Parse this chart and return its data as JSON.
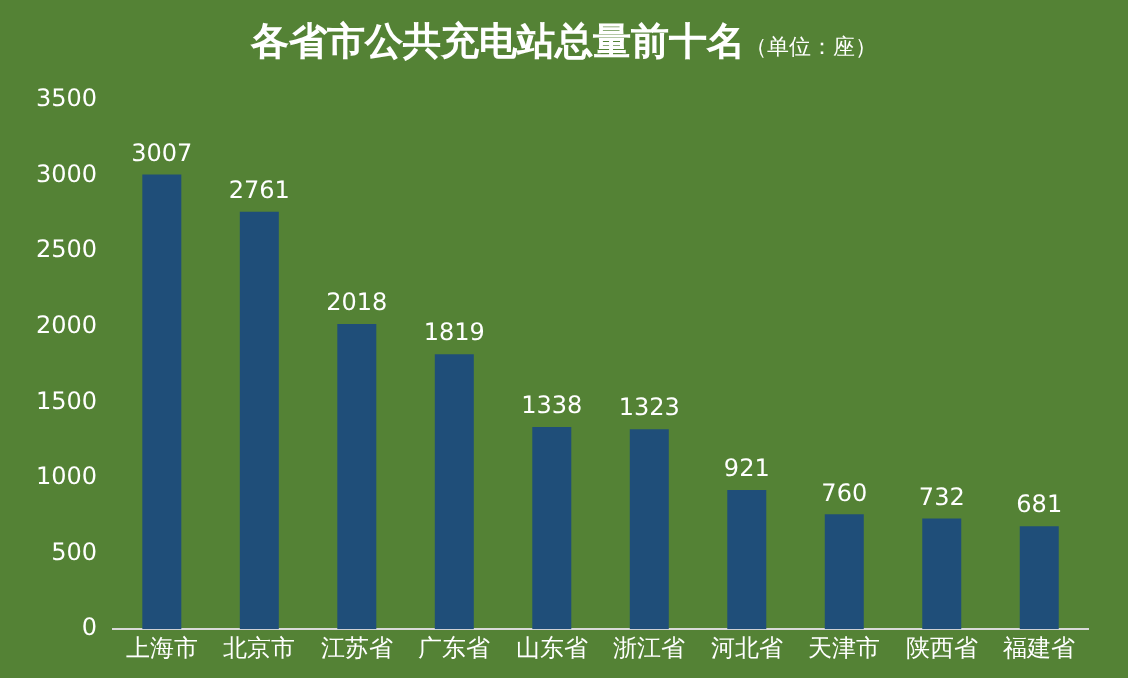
{
  "chart_data": {
    "type": "bar",
    "title": "各省市公共充电站总量前十名",
    "subtitle": "（单位：座）",
    "categories": [
      "上海市",
      "北京市",
      "江苏省",
      "广东省",
      "山东省",
      "浙江省",
      "河北省",
      "天津市",
      "陕西省",
      "福建省"
    ],
    "values": [
      3007,
      2761,
      2018,
      1819,
      1338,
      1323,
      921,
      760,
      732,
      681
    ],
    "color": "#1f4e79",
    "ylim": [
      0,
      3500
    ],
    "yticks": [
      0,
      500,
      1000,
      1500,
      2000,
      2500,
      3000,
      3500
    ],
    "grid": false,
    "data_labels": true
  }
}
